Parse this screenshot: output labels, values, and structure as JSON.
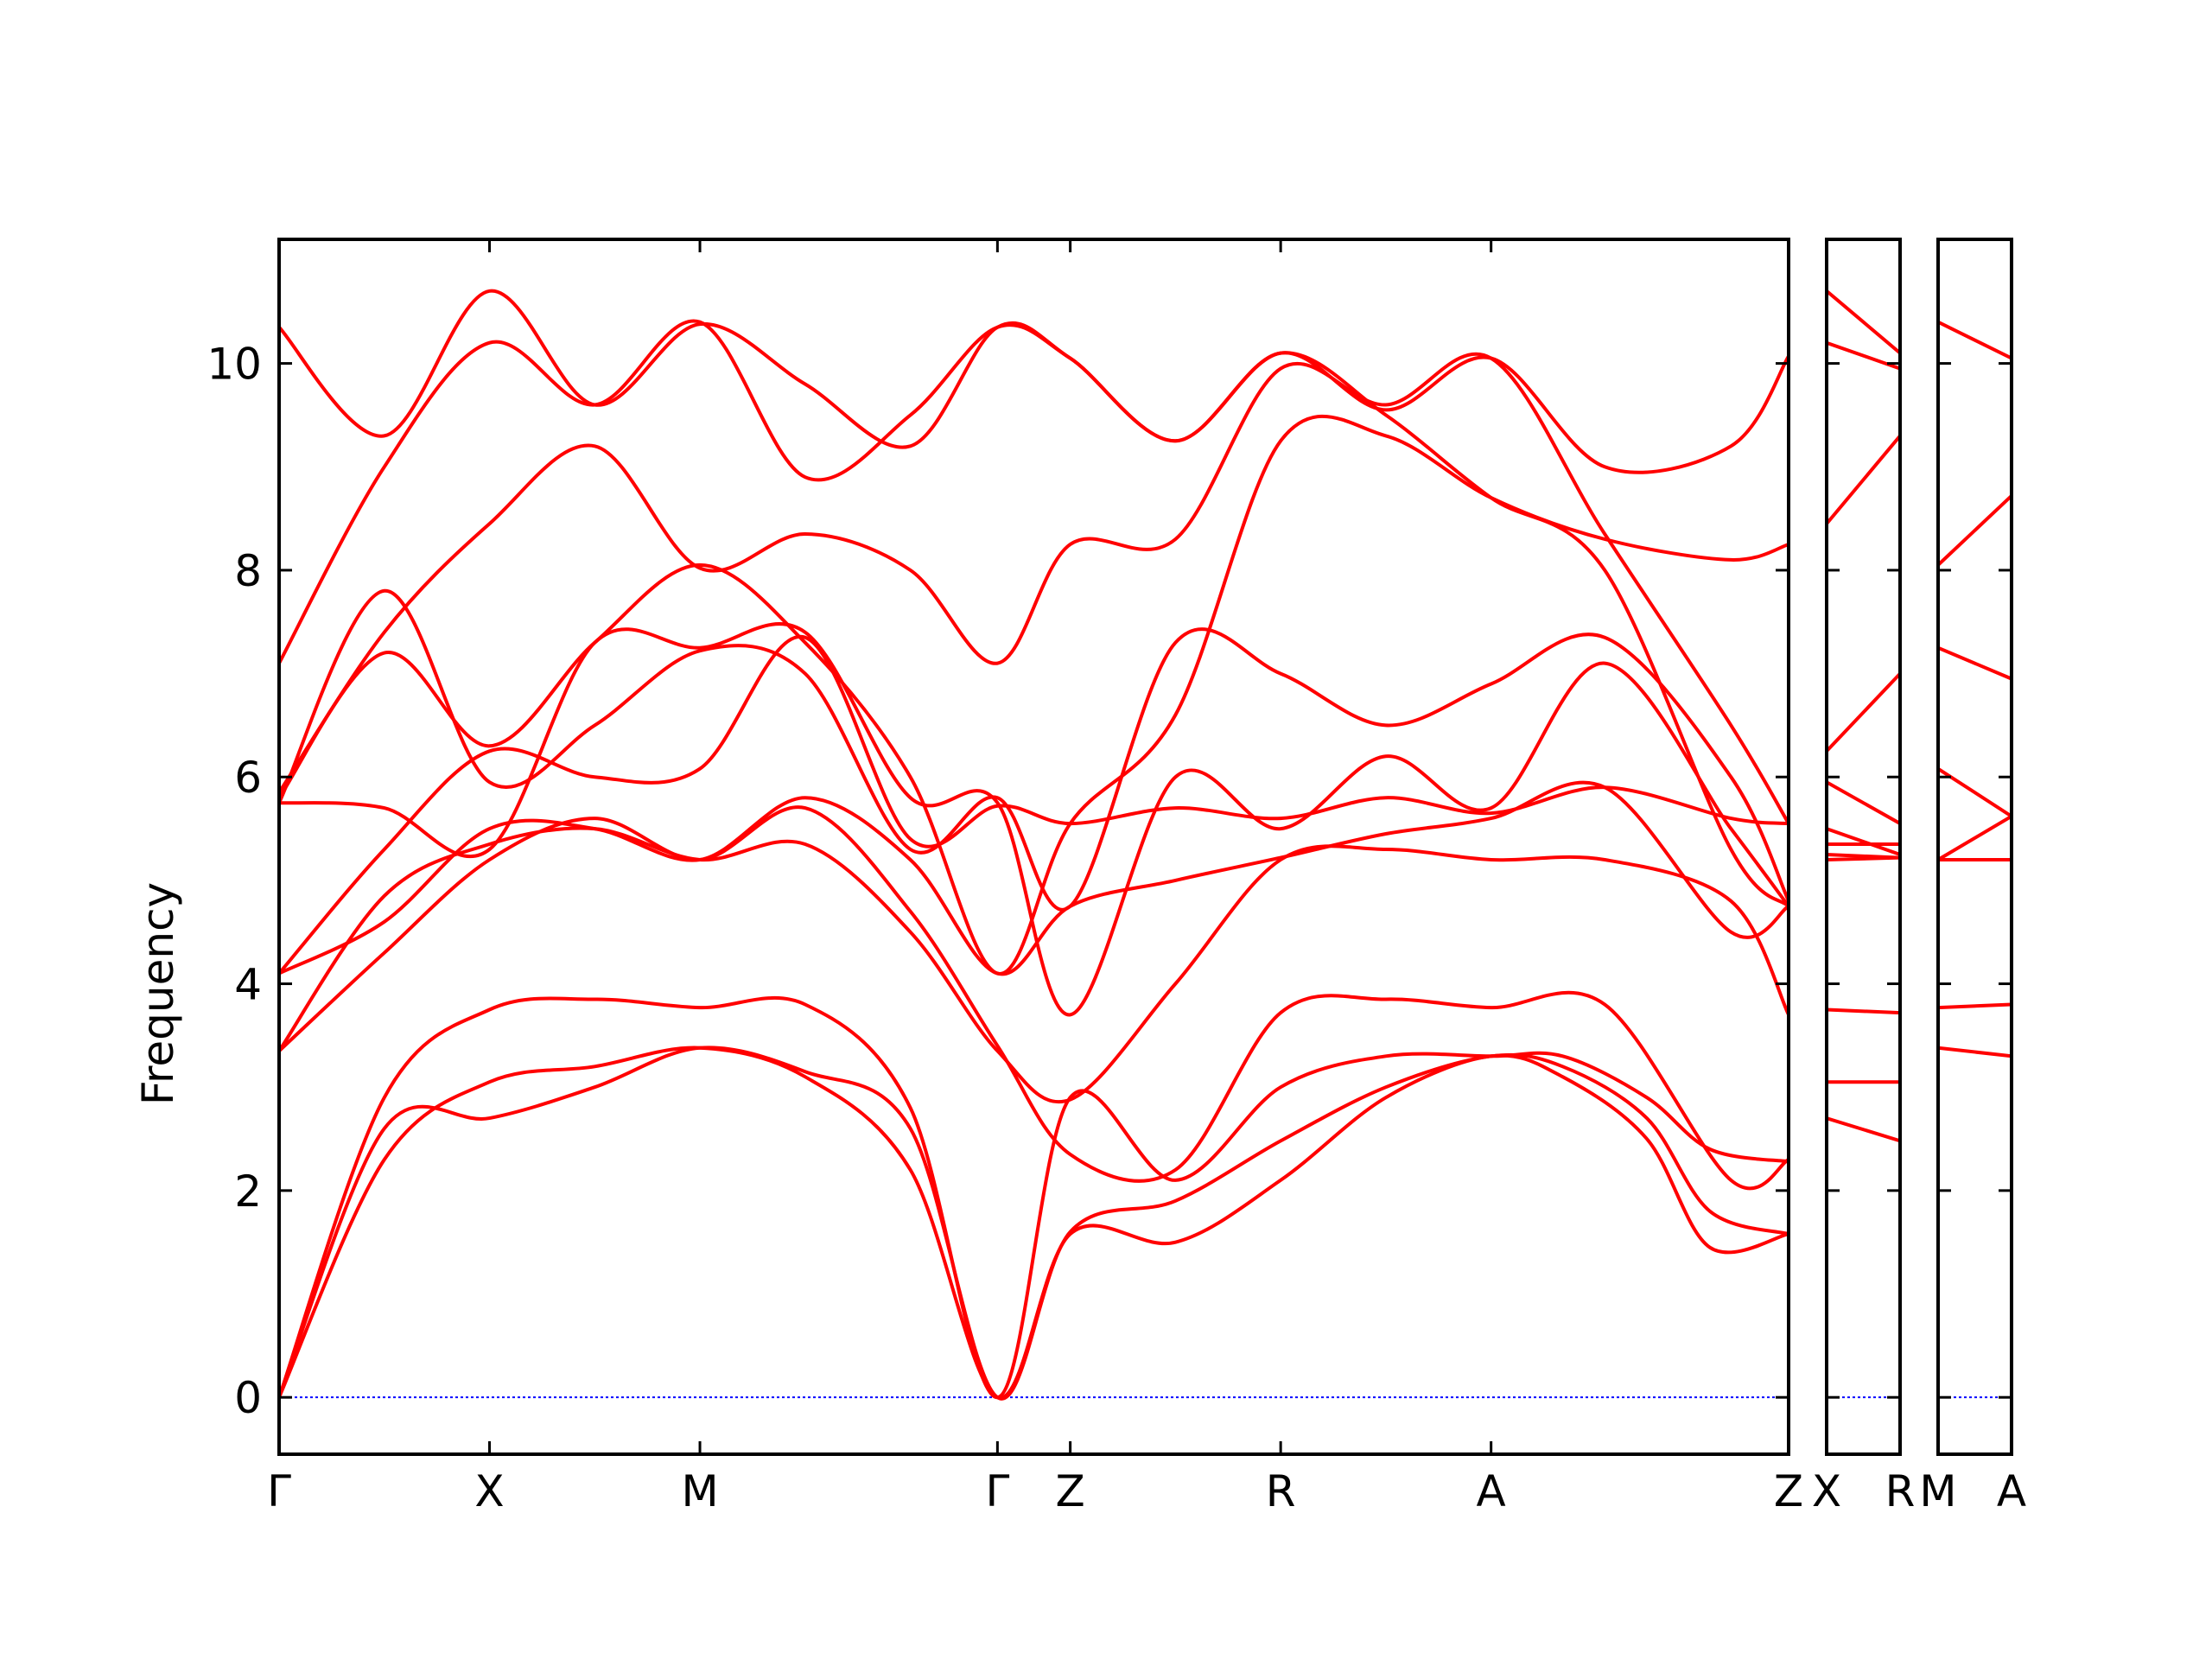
{
  "chart_data": {
    "type": "line",
    "title": "",
    "ylabel": "Frequency",
    "ylim": [
      -0.55,
      11.2
    ],
    "yticks": [
      0,
      2,
      4,
      6,
      8,
      10
    ],
    "grid": false,
    "legend": "none",
    "colors": {
      "bands": "#ff0000",
      "zero_line": "#0000ff",
      "axes": "#000000"
    },
    "panels": [
      {
        "id": "main",
        "kpoints": [
          {
            "label": "Γ",
            "x": 0.0
          },
          {
            "label": "X",
            "x": 1.0
          },
          {
            "label": "M",
            "x": 2.0
          },
          {
            "label": "Γ",
            "x": 3.414
          },
          {
            "label": "Z",
            "x": 3.76
          },
          {
            "label": "R",
            "x": 4.76
          },
          {
            "label": "A",
            "x": 5.76
          },
          {
            "label": "Z",
            "x": 7.174
          }
        ],
        "bands": [
          {
            "x": [
              0,
              0.5,
              1.0,
              1.5,
              2.0,
              2.5,
              3.0,
              3.414,
              3.76,
              4.26,
              4.76,
              5.26,
              5.76,
              6.1,
              6.5,
              6.8,
              7.174
            ],
            "y": [
              0,
              2.6,
              2.7,
              3.0,
              3.38,
              3.15,
              2.6,
              0,
              1.6,
              1.9,
              2.48,
              3.0,
              3.3,
              3.2,
              2.7,
              1.8,
              1.58
            ]
          },
          {
            "x": [
              0,
              0.5,
              1.0,
              1.5,
              2.0,
              2.5,
              3.0,
              3.414,
              3.76,
              4.26,
              4.76,
              5.26,
              5.76,
              6.1,
              6.5,
              6.8,
              7.174
            ],
            "y": [
              0,
              2.3,
              3.05,
              3.2,
              3.38,
              3.1,
              2.2,
              0,
              1.58,
              1.5,
              2.1,
              2.9,
              3.3,
              3.1,
              2.5,
              1.45,
              1.58
            ]
          },
          {
            "x": [
              0,
              0.5,
              1.0,
              1.5,
              2.0,
              2.5,
              3.0,
              3.414,
              3.76,
              4.26,
              4.76,
              5.26,
              5.76,
              6.1,
              6.5,
              6.8,
              7.174
            ],
            "y": [
              0,
              2.9,
              3.75,
              3.85,
              3.77,
              3.8,
              2.8,
              0,
              2.9,
              2.1,
              3.0,
              3.3,
              3.3,
              3.3,
              2.9,
              2.4,
              2.28
            ]
          },
          {
            "x": [
              0,
              0.5,
              1.0,
              1.5,
              2.0,
              2.5,
              3.0,
              3.414,
              3.76,
              4.26,
              4.76,
              5.26,
              5.76,
              6.3,
              6.9,
              7.174
            ],
            "y": [
              3.35,
              4.3,
              5.2,
              5.6,
              5.2,
              5.7,
              4.7,
              3.4,
              2.35,
              2.2,
              3.72,
              3.85,
              3.77,
              3.8,
              2.1,
              2.3
            ]
          },
          {
            "x": [
              0,
              0.5,
              1.0,
              1.5,
              2.0,
              2.5,
              3.0,
              3.414,
              3.76,
              4.26,
              4.76,
              5.26,
              5.76,
              6.3,
              6.9,
              7.174
            ],
            "y": [
              3.35,
              4.85,
              5.35,
              5.5,
              5.2,
              5.35,
              4.5,
              3.35,
              2.88,
              4.0,
              5.2,
              5.3,
              5.2,
              5.2,
              4.8,
              3.7
            ]
          },
          {
            "x": [
              0,
              0.5,
              1.0,
              1.5,
              2.0,
              2.5,
              3.0,
              3.414,
              3.76,
              4.26,
              4.76,
              5.26,
              5.76,
              6.3,
              6.9,
              7.174
            ],
            "y": [
              4.1,
              4.6,
              5.5,
              5.5,
              5.2,
              5.8,
              5.2,
              4.1,
              4.75,
              5.0,
              5.22,
              5.45,
              5.6,
              5.9,
              4.5,
              4.75
            ]
          },
          {
            "x": [
              0,
              0.5,
              1.0,
              1.5,
              2.0,
              2.5,
              3.0,
              3.414,
              3.76,
              4.26,
              4.76,
              5.26,
              5.76,
              6.3,
              6.9,
              7.174
            ],
            "y": [
              4.1,
              5.3,
              6.25,
              6.0,
              6.08,
              7.35,
              5.4,
              5.72,
              5.55,
              5.7,
              5.6,
              5.8,
              5.65,
              5.9,
              5.6,
              5.55
            ]
          },
          {
            "x": [
              0,
              0.5,
              1.0,
              1.5,
              2.0,
              2.5,
              3.0,
              3.414,
              3.76,
              4.26,
              4.76,
              5.26,
              5.76,
              6.3,
              6.9,
              7.174
            ],
            "y": [
              5.75,
              5.7,
              5.3,
              7.3,
              7.25,
              7.4,
              5.8,
              5.75,
              3.7,
              6.0,
              5.5,
              6.2,
              5.7,
              7.1,
              5.5,
              4.75
            ]
          },
          {
            "x": [
              0,
              0.5,
              1.0,
              1.5,
              2.0,
              2.5,
              3.0,
              3.414,
              3.76,
              4.26,
              4.76,
              5.26,
              5.76,
              6.3,
              6.9,
              7.174
            ],
            "y": [
              5.75,
              7.8,
              5.95,
              6.5,
              7.22,
              7.0,
              5.3,
              5.8,
              4.75,
              7.3,
              7.0,
              6.5,
              6.9,
              7.35,
              6.0,
              4.8
            ]
          },
          {
            "x": [
              0,
              0.5,
              1.0,
              1.5,
              2.0,
              2.5,
              3.0,
              3.414,
              3.76,
              4.26,
              4.76,
              5.26,
              5.76,
              6.3,
              6.9,
              7.174
            ],
            "y": [
              5.8,
              7.2,
              6.3,
              7.3,
              8.05,
              7.3,
              6.0,
              4.1,
              5.55,
              6.6,
              9.25,
              9.3,
              8.7,
              8.3,
              8.1,
              8.25
            ]
          },
          {
            "x": [
              0,
              0.5,
              1.0,
              1.5,
              2.0,
              2.5,
              3.0,
              3.414,
              3.76,
              4.26,
              4.76,
              5.26,
              5.76,
              6.3,
              6.9,
              7.174
            ],
            "y": [
              5.85,
              7.4,
              8.45,
              9.2,
              8.02,
              8.35,
              8.0,
              7.1,
              8.25,
              8.3,
              9.95,
              9.6,
              10.05,
              8.35,
              6.5,
              5.55
            ]
          },
          {
            "x": [
              0,
              0.5,
              1.0,
              1.5,
              2.0,
              2.5,
              3.0,
              3.414,
              3.76,
              4.26,
              4.76,
              5.26,
              5.76,
              6.3,
              6.9,
              7.174
            ],
            "y": [
              7.1,
              9.0,
              10.2,
              9.6,
              10.4,
              8.9,
              9.5,
              10.35,
              10.05,
              9.25,
              10.1,
              9.55,
              10.05,
              9.0,
              9.2,
              10.07
            ]
          },
          {
            "x": [
              0,
              0.5,
              1.0,
              1.5,
              2.0,
              2.5,
              3.0,
              3.414,
              3.76,
              4.26,
              4.76,
              5.26,
              5.76,
              6.3,
              6.9,
              7.174
            ],
            "y": [
              10.35,
              9.3,
              10.7,
              9.6,
              10.38,
              9.8,
              9.2,
              10.35,
              10.05,
              9.25,
              10.1,
              9.5,
              8.7,
              8.0,
              5.3,
              4.75
            ]
          }
        ]
      },
      {
        "id": "X-R",
        "kpoints": [
          {
            "label": "X",
            "x": 0.0
          },
          {
            "label": "R",
            "x": 1.0
          }
        ],
        "bands": [
          {
            "x": [
              0,
              1
            ],
            "y": [
              2.7,
              2.48
            ]
          },
          {
            "x": [
              0,
              1
            ],
            "y": [
              3.05,
              3.05
            ]
          },
          {
            "x": [
              0,
              1
            ],
            "y": [
              3.75,
              3.72
            ]
          },
          {
            "x": [
              0,
              1
            ],
            "y": [
              5.2,
              5.22
            ]
          },
          {
            "x": [
              0,
              1
            ],
            "y": [
              5.25,
              5.22
            ]
          },
          {
            "x": [
              0,
              1
            ],
            "y": [
              5.35,
              5.35
            ]
          },
          {
            "x": [
              0,
              1
            ],
            "y": [
              5.5,
              5.25
            ]
          },
          {
            "x": [
              0,
              1
            ],
            "y": [
              5.95,
              5.55
            ]
          },
          {
            "x": [
              0,
              1
            ],
            "y": [
              6.25,
              7.0
            ]
          },
          {
            "x": [
              0,
              1
            ],
            "y": [
              8.45,
              9.3
            ]
          },
          {
            "x": [
              0,
              1
            ],
            "y": [
              10.2,
              9.95
            ]
          },
          {
            "x": [
              0,
              1
            ],
            "y": [
              10.7,
              10.1
            ]
          }
        ]
      },
      {
        "id": "M-A",
        "kpoints": [
          {
            "label": "M",
            "x": 0.0
          },
          {
            "label": "A",
            "x": 1.0
          }
        ],
        "bands": [
          {
            "x": [
              0,
              1
            ],
            "y": [
              3.38,
              3.3
            ]
          },
          {
            "x": [
              0,
              1
            ],
            "y": [
              3.77,
              3.8
            ]
          },
          {
            "x": [
              0,
              1
            ],
            "y": [
              5.2,
              5.2
            ]
          },
          {
            "x": [
              0,
              1
            ],
            "y": [
              5.2,
              5.62
            ]
          },
          {
            "x": [
              0,
              1
            ],
            "y": [
              6.08,
              5.62
            ]
          },
          {
            "x": [
              0,
              1
            ],
            "y": [
              7.25,
              6.95
            ]
          },
          {
            "x": [
              0,
              1
            ],
            "y": [
              8.05,
              8.72
            ]
          },
          {
            "x": [
              0,
              1
            ],
            "y": [
              10.4,
              10.05
            ]
          }
        ]
      }
    ]
  }
}
